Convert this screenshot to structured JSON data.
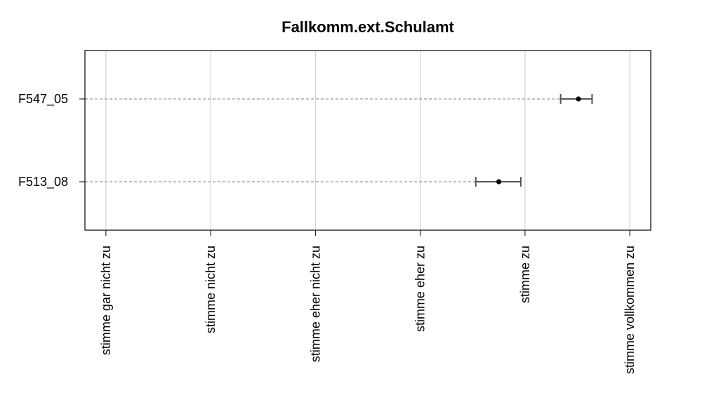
{
  "chart_data": {
    "type": "scatter",
    "title": "Fallkomm.ext.Schulamt",
    "xlabel": "",
    "ylabel": "",
    "x_tick_labels": [
      "stimme gar nicht zu",
      "stimme nicht zu",
      "stimme eher nicht zu",
      "stimme eher zu",
      "stimme zu",
      "stimme vollkommen zu"
    ],
    "x_ticks": [
      1,
      2,
      3,
      4,
      5,
      6
    ],
    "xlim": [
      0.8,
      6.2
    ],
    "categories": [
      "F547_05",
      "F513_08"
    ],
    "points": [
      {
        "label": "F547_05",
        "mean": 5.51,
        "lower": 5.34,
        "upper": 5.64
      },
      {
        "label": "F513_08",
        "mean": 4.75,
        "lower": 4.53,
        "upper": 4.96
      }
    ],
    "grid": true,
    "colors": {
      "point": "#000000",
      "error_bar": "#555555",
      "guide_line": "#808080",
      "grid": "#cccccc",
      "frame": "#000000"
    }
  }
}
